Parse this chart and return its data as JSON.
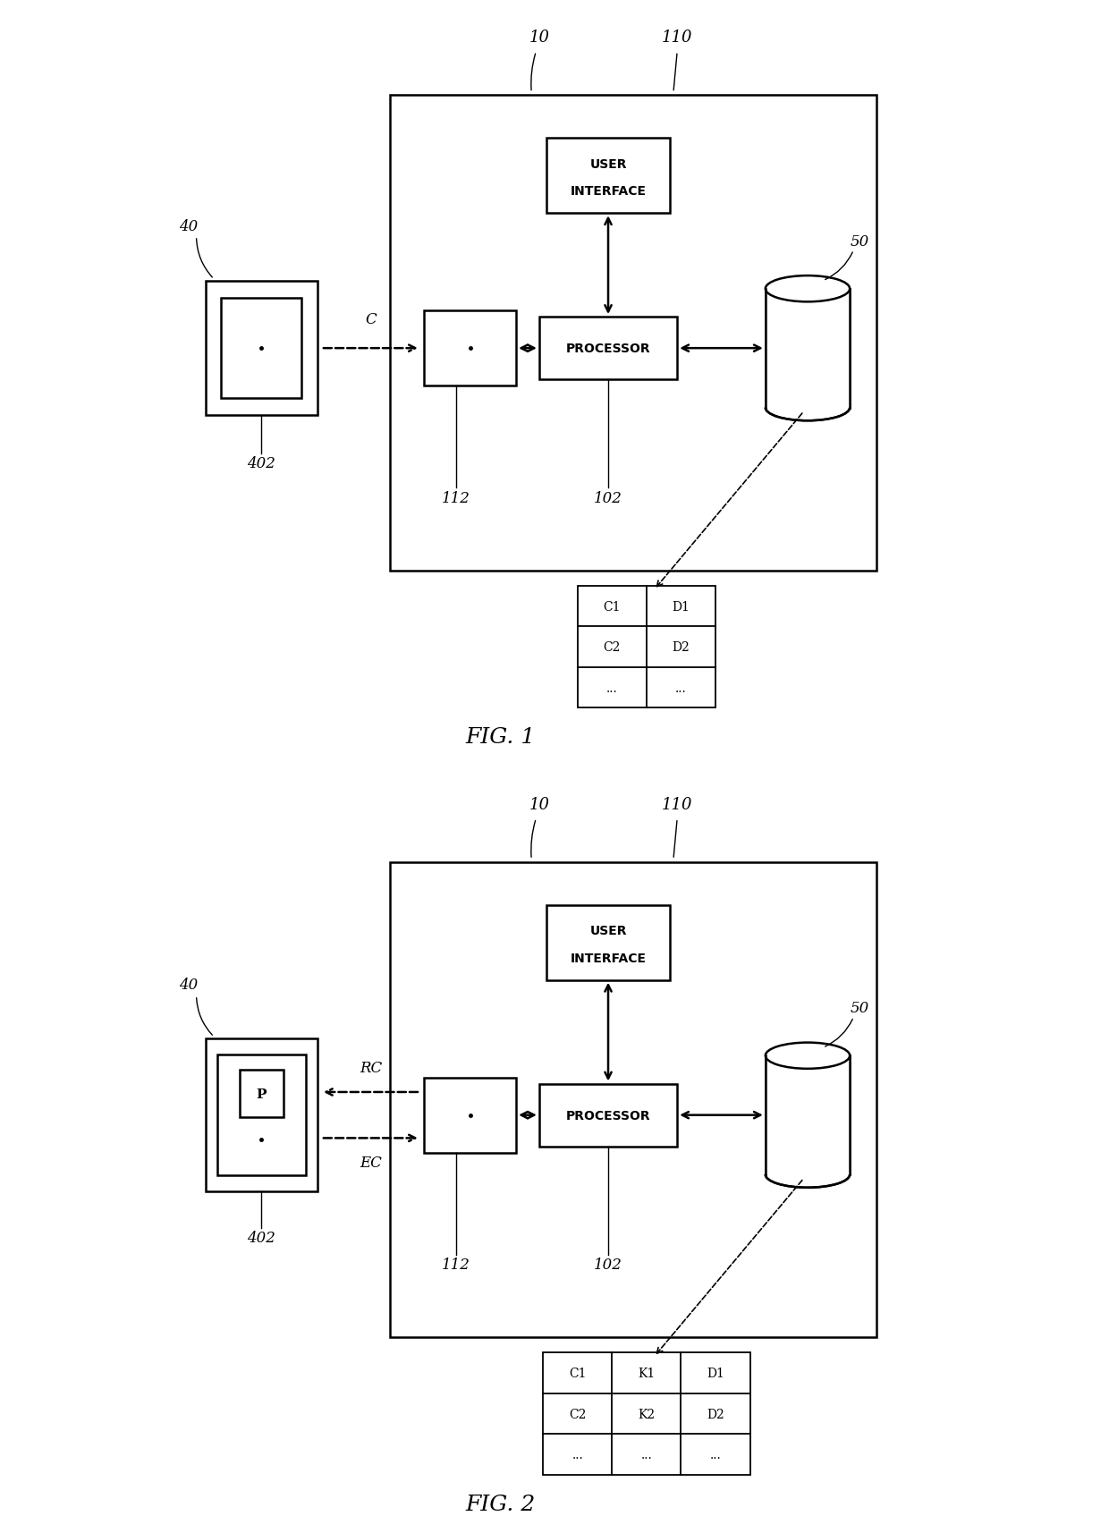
{
  "bg_color": "#ffffff",
  "fig1": {
    "title": "FIG. 1",
    "labels": {
      "10": "10",
      "110": "110",
      "40": "40",
      "402": "402",
      "50": "50",
      "112": "112",
      "102": "102",
      "C": "C"
    },
    "ui_text": [
      "USER",
      "INTERFACE"
    ],
    "proc_text": "PROCESSOR",
    "table_rows": [
      [
        "C1",
        "D1"
      ],
      [
        "C2",
        "D2"
      ],
      [
        "...",
        "..."
      ]
    ]
  },
  "fig2": {
    "title": "FIG. 2",
    "labels": {
      "10": "10",
      "110": "110",
      "40": "40",
      "402": "402",
      "50": "50",
      "112": "112",
      "102": "102",
      "RC": "RC",
      "EC": "EC"
    },
    "ui_text": [
      "USER",
      "INTERFACE"
    ],
    "proc_text": "PROCESSOR",
    "table_rows": [
      [
        "C1",
        "K1",
        "D1"
      ],
      [
        "C2",
        "K2",
        "D2"
      ],
      [
        "...",
        "...",
        "..."
      ]
    ]
  }
}
